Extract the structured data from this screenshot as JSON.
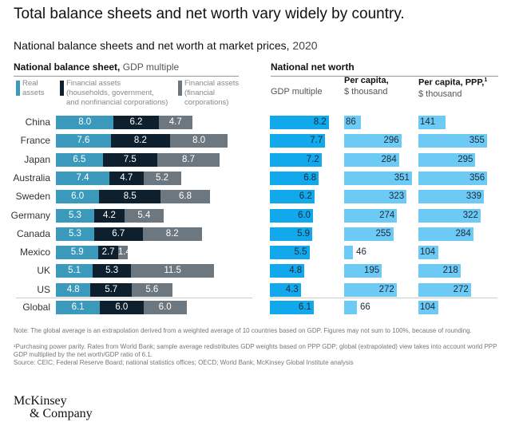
{
  "title": "Total balance sheets and net worth vary widely by country.",
  "subtitle": {
    "bold": "National balance sheets and net worth at market prices,",
    "light": "2020"
  },
  "left_section": {
    "bold": "National balance sheet,",
    "light": "GDP multiple"
  },
  "right_section": {
    "bold": "National net worth"
  },
  "legend": [
    {
      "label_lines": [
        "Real",
        "assets"
      ],
      "color": "#3b9abc"
    },
    {
      "label_lines": [
        "Financial assets",
        "(households, government,",
        "and nonfinancial corporations)"
      ],
      "color": "#0e1f2e"
    },
    {
      "label_lines": [
        "Financial assets",
        "(financial",
        "corporations)"
      ],
      "color": "#6c7780"
    }
  ],
  "columns": {
    "gdp_multiple": {
      "label": "GDP multiple"
    },
    "per_capita": {
      "bold": "Per capita,",
      "light": "$ thousand"
    },
    "per_capita_ppp": {
      "bold": "Per capita, PPP,",
      "sup": "1",
      "light": "$ thousand"
    }
  },
  "colors": {
    "real": "#3b9abc",
    "fin_nonfin": "#0e1f2e",
    "fin_corp": "#6c7780",
    "net_gdp": "#11a8ec",
    "net_pc": "#6dcaf5"
  },
  "chart_data": [
    {
      "type": "bar",
      "stacked": true,
      "orientation": "horizontal",
      "title": "National balance sheet, GDP multiple",
      "categories": [
        "China",
        "France",
        "Japan",
        "Australia",
        "Sweden",
        "Germany",
        "Canada",
        "Mexico",
        "UK",
        "US",
        "Global"
      ],
      "series": [
        {
          "name": "Real assets",
          "values": [
            8.0,
            7.6,
            6.5,
            7.4,
            6.0,
            5.3,
            5.3,
            5.9,
            5.1,
            4.8,
            6.1
          ]
        },
        {
          "name": "Financial assets (households, government, and nonfinancial corporations)",
          "values": [
            6.2,
            8.2,
            7.5,
            4.7,
            8.5,
            4.2,
            6.7,
            2.7,
            5.3,
            5.7,
            6.0
          ]
        },
        {
          "name": "Financial assets (financial corporations)",
          "values": [
            4.7,
            8.0,
            8.7,
            5.2,
            6.8,
            5.4,
            8.2,
            1.4,
            11.5,
            5.6,
            6.0
          ]
        }
      ]
    },
    {
      "type": "bar",
      "orientation": "horizontal",
      "title": "National net worth — GDP multiple",
      "categories": [
        "China",
        "France",
        "Japan",
        "Australia",
        "Sweden",
        "Germany",
        "Canada",
        "Mexico",
        "UK",
        "US",
        "Global"
      ],
      "values": [
        8.2,
        7.7,
        7.2,
        6.8,
        6.2,
        6.0,
        5.9,
        5.5,
        4.8,
        4.3,
        6.1
      ]
    },
    {
      "type": "bar",
      "orientation": "horizontal",
      "title": "National net worth — Per capita, $ thousand",
      "categories": [
        "China",
        "France",
        "Japan",
        "Australia",
        "Sweden",
        "Germany",
        "Canada",
        "Mexico",
        "UK",
        "US",
        "Global"
      ],
      "values": [
        86,
        296,
        284,
        351,
        323,
        274,
        255,
        46,
        195,
        272,
        66
      ]
    },
    {
      "type": "bar",
      "orientation": "horizontal",
      "title": "National net worth — Per capita, PPP, $ thousand",
      "categories": [
        "China",
        "France",
        "Japan",
        "Australia",
        "Sweden",
        "Germany",
        "Canada",
        "Mexico",
        "UK",
        "US",
        "Global"
      ],
      "values": [
        141,
        355,
        295,
        356,
        339,
        322,
        284,
        104,
        218,
        272,
        104
      ]
    }
  ],
  "footnotes": [
    "Note: The global average is an extrapolation derived from a weighted average of 10 countries based on GDP. Figures may not sum to 100%, because of rounding.",
    "¹Purchasing power parity. Rates from World Bank; sample average redistributes GDP weights based on PPP GDP; global (extrapolated) view takes into account world PPP GDP multiplied by the net worth/GDP ratio of 6.1.",
    "Source: CEIC; Federal Reserve Board; national statistics offices; OECD; World Bank; McKinsey Global Institute analysis"
  ],
  "logo": {
    "line1": "McKinsey",
    "line2": "& Company"
  }
}
